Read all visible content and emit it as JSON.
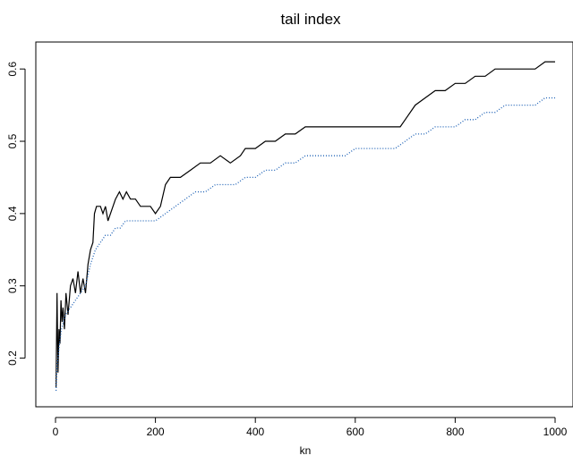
{
  "chart_data": {
    "type": "line",
    "title": "tail index",
    "xlabel": "kn",
    "ylabel": "",
    "xlim": [
      0,
      1000
    ],
    "ylim": [
      0.15,
      0.62
    ],
    "x_ticks": [
      0,
      200,
      400,
      600,
      800,
      1000
    ],
    "x_tick_labels": [
      "0",
      "200",
      "400",
      "600",
      "800",
      "1000"
    ],
    "y_ticks": [
      0.2,
      0.3,
      0.4,
      0.5,
      0.6
    ],
    "y_tick_labels": [
      "0.2",
      "0.3",
      "0.4",
      "0.5",
      "0.6"
    ],
    "grid": false,
    "legend": "none",
    "series": [
      {
        "style": "solid",
        "color": "#000000",
        "points": [
          [
            1,
            0.16
          ],
          [
            3,
            0.29
          ],
          [
            5,
            0.18
          ],
          [
            7,
            0.24
          ],
          [
            9,
            0.22
          ],
          [
            11,
            0.28
          ],
          [
            13,
            0.25
          ],
          [
            15,
            0.27
          ],
          [
            18,
            0.24
          ],
          [
            21,
            0.29
          ],
          [
            25,
            0.26
          ],
          [
            30,
            0.3
          ],
          [
            35,
            0.31
          ],
          [
            40,
            0.29
          ],
          [
            45,
            0.32
          ],
          [
            50,
            0.29
          ],
          [
            55,
            0.31
          ],
          [
            60,
            0.29
          ],
          [
            65,
            0.33
          ],
          [
            70,
            0.35
          ],
          [
            75,
            0.36
          ],
          [
            78,
            0.4
          ],
          [
            82,
            0.41
          ],
          [
            90,
            0.41
          ],
          [
            95,
            0.4
          ],
          [
            100,
            0.41
          ],
          [
            105,
            0.39
          ],
          [
            110,
            0.4
          ],
          [
            115,
            0.41
          ],
          [
            120,
            0.42
          ],
          [
            128,
            0.43
          ],
          [
            135,
            0.42
          ],
          [
            142,
            0.43
          ],
          [
            150,
            0.42
          ],
          [
            160,
            0.42
          ],
          [
            170,
            0.41
          ],
          [
            180,
            0.41
          ],
          [
            190,
            0.41
          ],
          [
            200,
            0.4
          ],
          [
            210,
            0.41
          ],
          [
            220,
            0.44
          ],
          [
            230,
            0.45
          ],
          [
            250,
            0.45
          ],
          [
            270,
            0.46
          ],
          [
            290,
            0.47
          ],
          [
            310,
            0.47
          ],
          [
            330,
            0.48
          ],
          [
            350,
            0.47
          ],
          [
            370,
            0.48
          ],
          [
            380,
            0.49
          ],
          [
            400,
            0.49
          ],
          [
            420,
            0.5
          ],
          [
            440,
            0.5
          ],
          [
            460,
            0.51
          ],
          [
            480,
            0.51
          ],
          [
            500,
            0.52
          ],
          [
            520,
            0.52
          ],
          [
            540,
            0.52
          ],
          [
            560,
            0.52
          ],
          [
            580,
            0.52
          ],
          [
            600,
            0.52
          ],
          [
            620,
            0.52
          ],
          [
            640,
            0.52
          ],
          [
            660,
            0.52
          ],
          [
            680,
            0.52
          ],
          [
            690,
            0.52
          ],
          [
            700,
            0.53
          ],
          [
            720,
            0.55
          ],
          [
            740,
            0.56
          ],
          [
            760,
            0.57
          ],
          [
            780,
            0.57
          ],
          [
            800,
            0.58
          ],
          [
            820,
            0.58
          ],
          [
            840,
            0.59
          ],
          [
            860,
            0.59
          ],
          [
            880,
            0.6
          ],
          [
            900,
            0.6
          ],
          [
            920,
            0.6
          ],
          [
            940,
            0.6
          ],
          [
            960,
            0.6
          ],
          [
            980,
            0.61
          ],
          [
            990,
            0.61
          ],
          [
            1000,
            0.61
          ]
        ]
      },
      {
        "style": "dotted",
        "color": "#1a5fb4",
        "points": [
          [
            1,
            0.155
          ],
          [
            3,
            0.19
          ],
          [
            5,
            0.2
          ],
          [
            8,
            0.22
          ],
          [
            12,
            0.24
          ],
          [
            16,
            0.25
          ],
          [
            20,
            0.26
          ],
          [
            25,
            0.265
          ],
          [
            30,
            0.27
          ],
          [
            40,
            0.28
          ],
          [
            50,
            0.29
          ],
          [
            60,
            0.3
          ],
          [
            70,
            0.33
          ],
          [
            80,
            0.35
          ],
          [
            90,
            0.36
          ],
          [
            100,
            0.37
          ],
          [
            110,
            0.37
          ],
          [
            120,
            0.38
          ],
          [
            130,
            0.38
          ],
          [
            140,
            0.39
          ],
          [
            160,
            0.39
          ],
          [
            180,
            0.39
          ],
          [
            200,
            0.39
          ],
          [
            220,
            0.4
          ],
          [
            240,
            0.41
          ],
          [
            260,
            0.42
          ],
          [
            280,
            0.43
          ],
          [
            300,
            0.43
          ],
          [
            320,
            0.44
          ],
          [
            340,
            0.44
          ],
          [
            360,
            0.44
          ],
          [
            380,
            0.45
          ],
          [
            400,
            0.45
          ],
          [
            420,
            0.46
          ],
          [
            440,
            0.46
          ],
          [
            460,
            0.47
          ],
          [
            480,
            0.47
          ],
          [
            500,
            0.48
          ],
          [
            520,
            0.48
          ],
          [
            540,
            0.48
          ],
          [
            560,
            0.48
          ],
          [
            580,
            0.48
          ],
          [
            600,
            0.49
          ],
          [
            620,
            0.49
          ],
          [
            640,
            0.49
          ],
          [
            660,
            0.49
          ],
          [
            680,
            0.49
          ],
          [
            700,
            0.5
          ],
          [
            720,
            0.51
          ],
          [
            740,
            0.51
          ],
          [
            760,
            0.52
          ],
          [
            780,
            0.52
          ],
          [
            800,
            0.52
          ],
          [
            820,
            0.53
          ],
          [
            840,
            0.53
          ],
          [
            860,
            0.54
          ],
          [
            880,
            0.54
          ],
          [
            900,
            0.55
          ],
          [
            920,
            0.55
          ],
          [
            940,
            0.55
          ],
          [
            960,
            0.55
          ],
          [
            980,
            0.56
          ],
          [
            1000,
            0.56
          ]
        ]
      }
    ]
  }
}
